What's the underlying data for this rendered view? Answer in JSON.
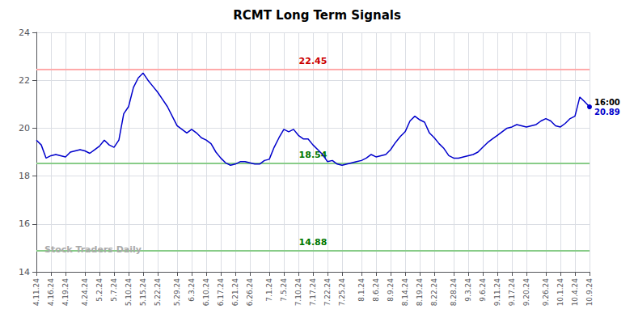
{
  "chart_data": {
    "type": "line",
    "title": "RCMT Long Term Signals",
    "categories": [
      "4.11.24",
      null,
      null,
      "4.16.24",
      null,
      null,
      "4.19.24",
      null,
      null,
      null,
      "4.24.24",
      null,
      null,
      "5.2.24",
      null,
      null,
      "5.7.24",
      null,
      null,
      "5.10.24",
      null,
      null,
      "5.15.24",
      null,
      null,
      "5.22.24",
      null,
      null,
      null,
      "5.29.24",
      null,
      null,
      "6.3.24",
      null,
      null,
      "6.10.24",
      null,
      null,
      "6.17.24",
      null,
      null,
      "6.21.24",
      null,
      null,
      "6.26.24",
      null,
      null,
      null,
      "7.1.24",
      null,
      null,
      "7.5.24",
      null,
      null,
      "7.10.24",
      null,
      null,
      "7.17.24",
      null,
      null,
      "7.22.24",
      null,
      null,
      "7.25.24",
      null,
      null,
      null,
      "8.1.24",
      null,
      null,
      "8.6.24",
      null,
      null,
      "8.9.24",
      null,
      null,
      "8.14.24",
      null,
      null,
      "8.19.24",
      null,
      null,
      "8.22.24",
      null,
      null,
      null,
      "8.28.24",
      null,
      null,
      "9.3.24",
      null,
      null,
      "9.6.24",
      null,
      null,
      "9.11.24",
      null,
      null,
      "9.17.24",
      null,
      null,
      "9.20.24",
      null,
      null,
      null,
      "9.26.24",
      null,
      null,
      "10.1.24",
      null,
      null,
      "10.4.24",
      null,
      null,
      "10.9.24"
    ],
    "values": [
      19.5,
      19.3,
      18.75,
      18.85,
      18.9,
      18.85,
      18.8,
      19.0,
      19.05,
      19.1,
      19.05,
      18.95,
      19.1,
      19.25,
      19.5,
      19.3,
      19.2,
      19.5,
      20.6,
      20.9,
      21.7,
      22.1,
      22.3,
      22.0,
      21.75,
      21.5,
      21.2,
      20.9,
      20.5,
      20.1,
      19.95,
      19.8,
      19.95,
      19.8,
      19.6,
      19.5,
      19.35,
      19.0,
      18.75,
      18.55,
      18.45,
      18.5,
      18.6,
      18.6,
      18.55,
      18.5,
      18.5,
      18.65,
      18.7,
      19.2,
      19.6,
      19.95,
      19.85,
      19.95,
      19.7,
      19.55,
      19.55,
      19.3,
      19.1,
      18.9,
      18.6,
      18.65,
      18.5,
      18.45,
      18.5,
      18.55,
      18.6,
      18.65,
      18.75,
      18.9,
      18.8,
      18.85,
      18.9,
      19.1,
      19.4,
      19.65,
      19.85,
      20.3,
      20.5,
      20.35,
      20.25,
      19.8,
      19.6,
      19.35,
      19.15,
      18.85,
      18.75,
      18.75,
      18.8,
      18.85,
      18.9,
      19.0,
      19.2,
      19.4,
      19.55,
      19.7,
      19.85,
      20.0,
      20.05,
      20.15,
      20.1,
      20.05,
      20.1,
      20.15,
      20.3,
      20.4,
      20.3,
      20.1,
      20.05,
      20.2,
      20.4,
      20.5,
      21.3,
      21.1,
      20.89
    ],
    "color": "#0000cc",
    "ylim": [
      14,
      24
    ],
    "yticks": [
      14,
      16,
      18,
      20,
      22,
      24
    ],
    "grid": true,
    "hlines": [
      {
        "value": 22.45,
        "label": "22.45",
        "color": "#ffaaaa",
        "label_color": "#cc0000"
      },
      {
        "value": 18.54,
        "label": "18.54",
        "color": "#88cc88",
        "label_color": "#007700"
      },
      {
        "value": 14.88,
        "label": "14.88",
        "color": "#88cc88",
        "label_color": "#007700"
      }
    ],
    "annotations": [
      {
        "text": "16:00",
        "y": 20.89,
        "color": "#000000"
      },
      {
        "text": "20.89",
        "y": 20.89,
        "color": "#0000cc"
      },
      {
        "text": "Stock Traders Daily",
        "color": "#aaaaaa"
      }
    ]
  }
}
